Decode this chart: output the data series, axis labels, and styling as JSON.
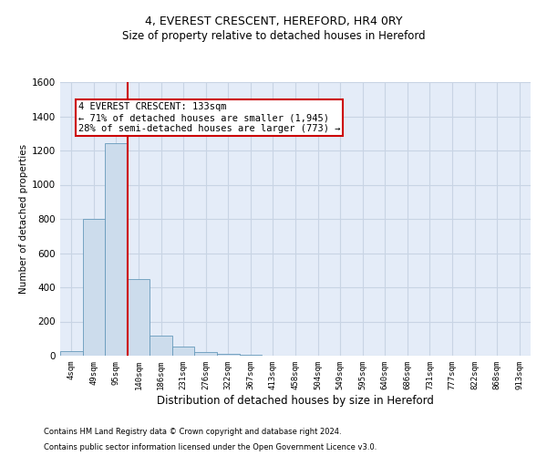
{
  "title_line1": "4, EVEREST CRESCENT, HEREFORD, HR4 0RY",
  "title_line2": "Size of property relative to detached houses in Hereford",
  "xlabel": "Distribution of detached houses by size in Hereford",
  "ylabel": "Number of detached properties",
  "footer_line1": "Contains HM Land Registry data © Crown copyright and database right 2024.",
  "footer_line2": "Contains public sector information licensed under the Open Government Licence v3.0.",
  "bar_labels": [
    "4sqm",
    "49sqm",
    "95sqm",
    "140sqm",
    "186sqm",
    "231sqm",
    "276sqm",
    "322sqm",
    "367sqm",
    "413sqm",
    "458sqm",
    "504sqm",
    "549sqm",
    "595sqm",
    "640sqm",
    "686sqm",
    "731sqm",
    "777sqm",
    "822sqm",
    "868sqm",
    "913sqm"
  ],
  "bar_values": [
    25,
    800,
    1245,
    450,
    120,
    55,
    20,
    10,
    5,
    0,
    0,
    0,
    0,
    0,
    0,
    0,
    0,
    0,
    0,
    0,
    0
  ],
  "bar_color": "#ccdcec",
  "bar_edge_color": "#6699bb",
  "grid_color": "#c8d4e4",
  "bg_color": "#e4ecf8",
  "ylim": [
    0,
    1600
  ],
  "yticks": [
    0,
    200,
    400,
    600,
    800,
    1000,
    1200,
    1400,
    1600
  ],
  "property_line_x": 2.5,
  "annotation_text_line1": "4 EVEREST CRESCENT: 133sqm",
  "annotation_text_line2": "← 71% of detached houses are smaller (1,945)",
  "annotation_text_line3": "28% of semi-detached houses are larger (773) →",
  "red_line_color": "#cc0000",
  "annotation_border_color": "#cc0000",
  "title1_fontsize": 9,
  "title2_fontsize": 8.5,
  "ann_fontsize": 7.5,
  "xlabel_fontsize": 8.5,
  "ylabel_fontsize": 7.5,
  "footer_fontsize": 6.0,
  "ytick_fontsize": 7.5,
  "xtick_fontsize": 6.5
}
